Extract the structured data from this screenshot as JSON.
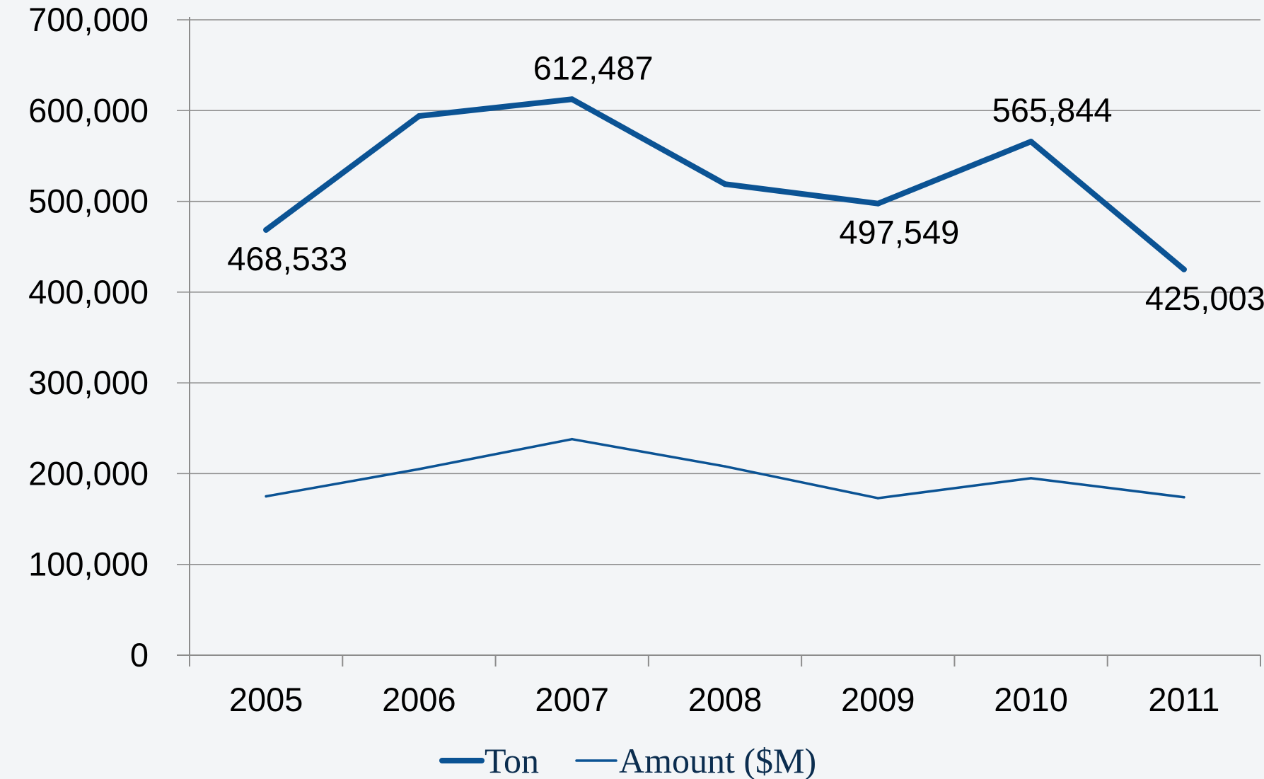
{
  "chart_data": {
    "type": "line",
    "categories": [
      "2005",
      "2006",
      "2007",
      "2008",
      "2009",
      "2010",
      "2011"
    ],
    "series": [
      {
        "name": "Ton",
        "values": [
          468533,
          594000,
          612487,
          519000,
          497549,
          565844,
          425003
        ],
        "color": "#0b5394",
        "style": "thick",
        "data_labels": [
          {
            "index": 0,
            "text": "468,533",
            "position": "below"
          },
          {
            "index": 2,
            "text": "612,487",
            "position": "above"
          },
          {
            "index": 4,
            "text": "497,549",
            "position": "below"
          },
          {
            "index": 5,
            "text": "565,844",
            "position": "above"
          },
          {
            "index": 6,
            "text": "425,003",
            "position": "below"
          }
        ]
      },
      {
        "name": "Amount ($M)",
        "values": [
          175000,
          205000,
          238000,
          208000,
          173000,
          195000,
          174000
        ],
        "color": "#0b5394",
        "style": "thin"
      }
    ],
    "y_ticks": [
      "0",
      "100,000",
      "200,000",
      "300,000",
      "400,000",
      "500,000",
      "600,000",
      "700,000"
    ],
    "ylim": [
      0,
      700000
    ],
    "grid": "horizontal",
    "legend": "bottom",
    "title": "",
    "xlabel": "",
    "ylabel": ""
  }
}
